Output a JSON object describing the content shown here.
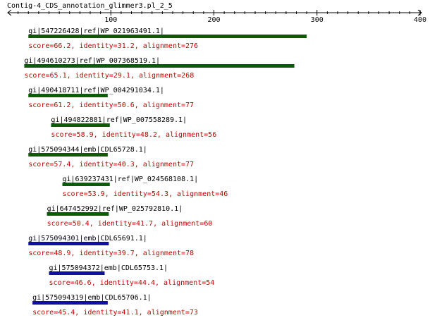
{
  "title": "Contig-4_CDS_annotation_glimmer3.pl_2_5",
  "colors": {
    "score_text": "#cc0000",
    "axis": "#000000",
    "green": "#0b5b0b",
    "blue": "#1010a0"
  },
  "axis": {
    "min": 0,
    "max": 400,
    "major_ticks": [
      100,
      200,
      300,
      400
    ],
    "tick_labels": [
      "100",
      "200",
      "300",
      "400"
    ],
    "minor_step": 10
  },
  "hits": [
    {
      "label": "gi|547226428|ref|WP_021963491.1|",
      "start": 20,
      "end": 290,
      "color": "green",
      "score_text": "score=66.2, identity=31.2, alignment=276"
    },
    {
      "label": "gi|494610273|ref|WP_007368519.1|",
      "start": 16,
      "end": 278,
      "color": "green",
      "score_text": "score=65.1, identity=29.1, alignment=268"
    },
    {
      "label": "gi|490418711|ref|WP_004291034.1|",
      "start": 20,
      "end": 97,
      "color": "green",
      "score_text": "score=61.2, identity=50.6, alignment=77"
    },
    {
      "label": "gi|494822881|ref|WP_007558289.1|",
      "start": 42,
      "end": 99,
      "color": "green",
      "score_text": "score=58.9, identity=48.2, alignment=56"
    },
    {
      "label": "gi|575094344|emb|CDL65728.1|",
      "start": 20,
      "end": 97,
      "color": "green",
      "score_text": "score=57.4, identity=40.3, alignment=77"
    },
    {
      "label": "gi|639237431|ref|WP_024568108.1|",
      "start": 53,
      "end": 99,
      "color": "green",
      "score_text": "score=53.9, identity=54.3, alignment=46"
    },
    {
      "label": "gi|647452992|ref|WP_025792810.1|",
      "start": 38,
      "end": 98,
      "color": "green",
      "score_text": "score=50.4, identity=41.7, alignment=60"
    },
    {
      "label": "gi|575094301|emb|CDL65691.1|",
      "start": 20,
      "end": 98,
      "color": "blue",
      "score_text": "score=48.9, identity=39.7, alignment=78"
    },
    {
      "label": "gi|575094372|emb|CDL65753.1|",
      "start": 40,
      "end": 94,
      "color": "blue",
      "score_text": "score=46.6, identity=44.4, alignment=54"
    },
    {
      "label": "gi|575094319|emb|CDL65706.1|",
      "start": 24,
      "end": 97,
      "color": "blue",
      "score_text": "score=45.4, identity=41.1, alignment=73"
    }
  ]
}
